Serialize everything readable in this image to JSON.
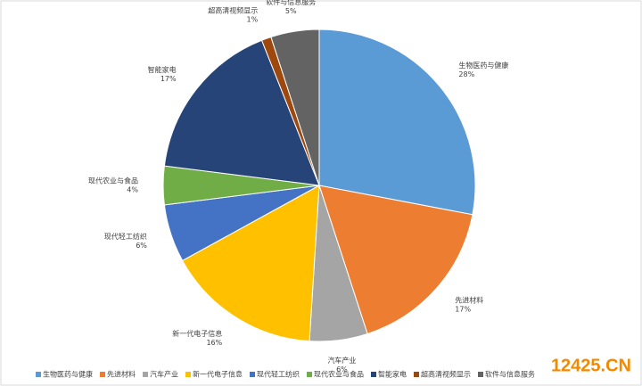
{
  "chart_data": {
    "type": "pie",
    "categories": [
      "生物医药与健康",
      "先进材料",
      "汽车产业",
      "新一代电子信息",
      "现代轻工纺织",
      "现代农业与食品",
      "智能家电",
      "超高清视频显示",
      "软件与信息服务"
    ],
    "values": [
      28,
      17,
      6,
      16,
      6,
      4,
      17,
      1,
      5
    ],
    "value_labels": [
      "28%",
      "17%",
      "6%",
      "16%",
      "6%",
      "4%",
      "17%",
      "1%",
      "5%"
    ],
    "colors": [
      "#5b9bd5",
      "#ed7d31",
      "#a5a5a5",
      "#ffc000",
      "#4472c4",
      "#70ad47",
      "#264478",
      "#9e480e",
      "#636363"
    ],
    "legend": "bottom"
  },
  "watermark": "12425.CN"
}
